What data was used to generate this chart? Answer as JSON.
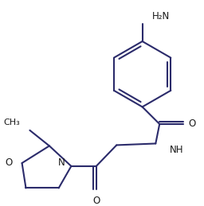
{
  "bg_color": "#ffffff",
  "bond_color": "#2b2b6b",
  "text_color": "#1a1a1a",
  "lw": 1.5,
  "figsize": [
    2.56,
    2.59
  ],
  "dpi": 100,
  "xlim": [
    0,
    256
  ],
  "ylim": [
    0,
    259
  ]
}
